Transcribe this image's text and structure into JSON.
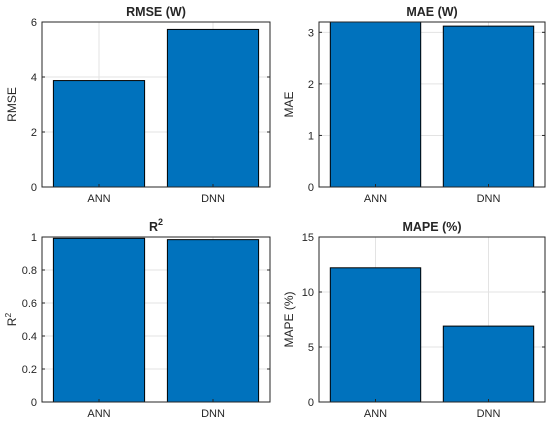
{
  "chart_data": [
    {
      "type": "bar",
      "title": "RMSE (W)",
      "ylabel": "RMSE",
      "categories": [
        "ANN",
        "DNN"
      ],
      "values": [
        3.87,
        5.73
      ],
      "ylim": [
        0,
        6
      ],
      "yticks": [
        "0",
        "2",
        "4",
        "6"
      ],
      "ytick_values": [
        0,
        2,
        4,
        6
      ],
      "grid": true
    },
    {
      "type": "bar",
      "title": "MAE (W)",
      "ylabel": "MAE",
      "categories": [
        "ANN",
        "DNN"
      ],
      "values": [
        3.2,
        3.12
      ],
      "ylim": [
        0,
        3.2
      ],
      "yticks": [
        "0",
        "1",
        "2",
        "3"
      ],
      "ytick_values": [
        0,
        1,
        2,
        3
      ],
      "grid": true
    },
    {
      "type": "bar",
      "title": "R",
      "title_sup": "2",
      "ylabel": "R",
      "ylabel_sup": "2",
      "categories": [
        "ANN",
        "DNN"
      ],
      "values": [
        0.992,
        0.984
      ],
      "ylim": [
        0,
        1
      ],
      "yticks": [
        "0",
        "0.2",
        "0.4",
        "0.6",
        "0.8",
        "1"
      ],
      "ytick_values": [
        0,
        0.2,
        0.4,
        0.6,
        0.8,
        1
      ],
      "grid": true
    },
    {
      "type": "bar",
      "title": "MAPE (%)",
      "ylabel": "MAPE (%)",
      "categories": [
        "ANN",
        "DNN"
      ],
      "values": [
        12.2,
        6.9
      ],
      "ylim": [
        0,
        15
      ],
      "yticks": [
        "0",
        "5",
        "10",
        "15"
      ],
      "ytick_values": [
        0,
        5,
        10,
        15
      ],
      "grid": true
    }
  ],
  "colors": {
    "bar": "#0072bd",
    "bar_edge": "#000000",
    "grid": "#e3e3e3",
    "axis": "#262626"
  }
}
